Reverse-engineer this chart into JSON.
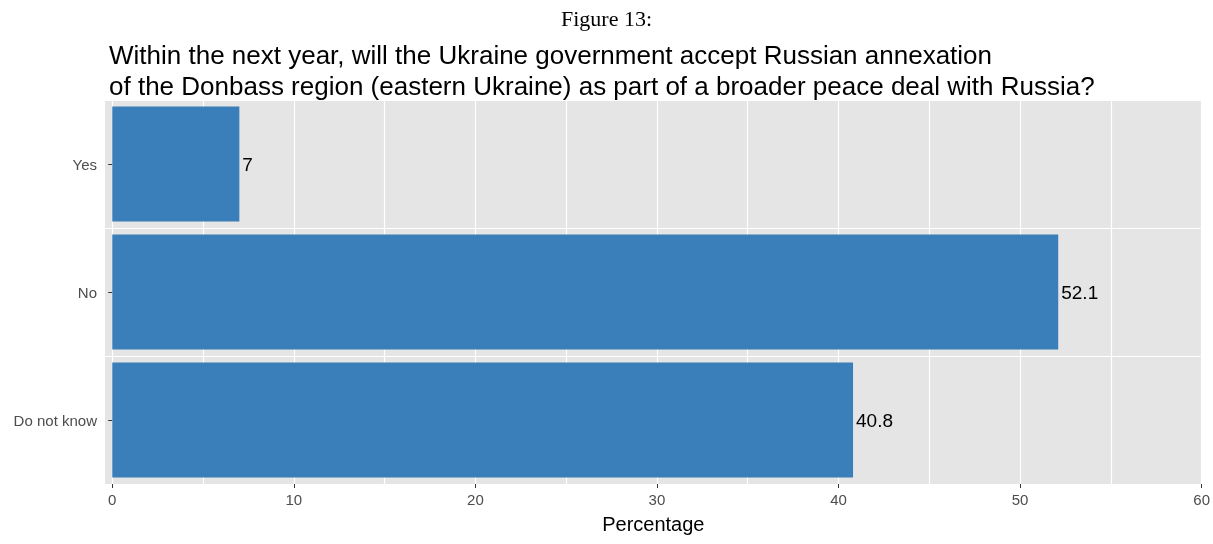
{
  "chart_data": {
    "type": "bar",
    "orientation": "horizontal",
    "title": "Figure 13:",
    "subtitle": "Within the next year, will the Ukraine government accept Russian annexation\nof the Donbass region (eastern Ukraine) as part of a broader peace deal with Russia?",
    "xlabel": "Percentage",
    "categories": [
      "Yes",
      "No",
      "Do not know"
    ],
    "values": [
      7,
      52.1,
      40.8
    ],
    "color": "#3a7fba",
    "xlim": [
      -0.4,
      60
    ],
    "xticks": [
      0,
      {
        "value": 5,
        "label": null
      },
      10,
      {
        "value": 15,
        "label": null
      },
      20,
      {
        "value": 25,
        "label": null
      },
      30,
      {
        "value": 35,
        "label": null
      },
      40,
      {
        "value": 45,
        "label": null
      },
      50,
      {
        "value": 55,
        "label": null
      },
      60
    ],
    "grid": true,
    "data_labels": true
  }
}
